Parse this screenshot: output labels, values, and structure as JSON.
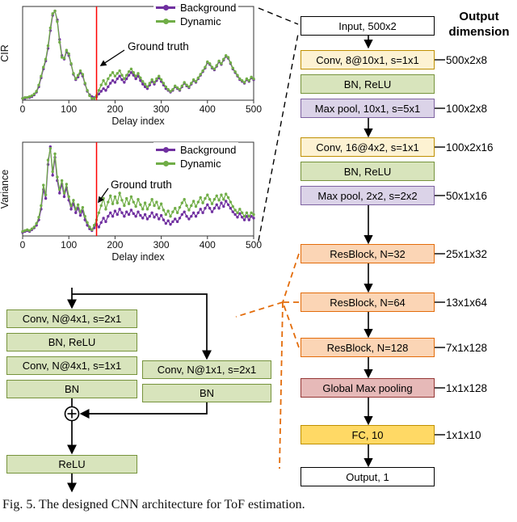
{
  "caption": "Fig. 5.  The designed CNN architecture for ToF estimation.",
  "flowchart": {
    "header": "Output dimension",
    "nodes": [
      {
        "label": "Input, 500x2",
        "type": "io",
        "dim": ""
      },
      {
        "label": "Conv, 8@10x1, s=1x1",
        "type": "conv",
        "dim": "500x2x8"
      },
      {
        "label": "BN, ReLU",
        "type": "bn",
        "dim": ""
      },
      {
        "label": "Max pool, 10x1, s=5x1",
        "type": "pool",
        "dim": "100x2x8"
      },
      {
        "label": "Conv, 16@4x2, s=1x1",
        "type": "conv",
        "dim": "100x2x16"
      },
      {
        "label": "BN, ReLU",
        "type": "bn",
        "dim": ""
      },
      {
        "label": "Max pool, 2x2, s=2x2",
        "type": "pool",
        "dim": "50x1x16"
      },
      {
        "label": "ResBlock, N=32",
        "type": "res",
        "dim": "25x1x32"
      },
      {
        "label": "ResBlock, N=64",
        "type": "res",
        "dim": "13x1x64"
      },
      {
        "label": "ResBlock, N=128",
        "type": "res",
        "dim": "7x1x128"
      },
      {
        "label": "Global Max pooling",
        "type": "gmp",
        "dim": "1x1x128"
      },
      {
        "label": "FC, 10",
        "type": "fc",
        "dim": "1x1x10"
      },
      {
        "label": "Output, 1",
        "type": "io",
        "dim": ""
      }
    ]
  },
  "resblock_detail": {
    "boxes": {
      "conv1": "Conv, N@4x1, s=2x1",
      "bn_relu": "BN, ReLU",
      "conv2": "Conv, N@4x1, s=1x1",
      "bn": "BN",
      "shortcut_conv": "Conv, N@1x1, s=2x1",
      "shortcut_bn": "BN",
      "relu": "ReLU"
    },
    "merge_symbol": "⊕"
  },
  "colors": {
    "conv_fill": "#fdf2d2",
    "conv_border": "#bf9000",
    "bn_fill": "#d8e4bc",
    "bn_border": "#76933c",
    "pool_fill": "#dbd3e8",
    "pool_border": "#7e62a1",
    "res_fill": "#fbd5b5",
    "res_border": "#e36c0a",
    "gmp_fill": "#e6b9b8",
    "gmp_border": "#953735",
    "fc_fill": "#ffd965",
    "fc_border": "#bf9000",
    "io_fill": "#ffffff",
    "io_border": "#000000",
    "background_series": "#7030a0",
    "dynamic_series": "#70ad47",
    "ground_truth_line": "#ff0000",
    "dashed_connector": "#e36c0a"
  },
  "chart_data": [
    {
      "type": "line",
      "ylabel": "CIR",
      "xlabel": "Delay index",
      "xlim": [
        0,
        500
      ],
      "ymax": 1.05,
      "xticks": [
        0,
        100,
        200,
        300,
        400,
        500
      ],
      "x_start": 0,
      "x_step": 5,
      "ground_truth_x": 160,
      "annotation": "Ground truth",
      "legend_position": "top-right",
      "series": [
        {
          "name": "Background",
          "color": "#7030a0",
          "values": [
            0.02,
            0.02,
            0.03,
            0.03,
            0.04,
            0.06,
            0.09,
            0.15,
            0.25,
            0.35,
            0.44,
            0.58,
            0.78,
            0.95,
            1.0,
            0.9,
            0.68,
            0.5,
            0.46,
            0.54,
            0.5,
            0.4,
            0.29,
            0.23,
            0.26,
            0.31,
            0.27,
            0.18,
            0.1,
            0.06,
            0.04,
            0.03,
            0.04,
            0.07,
            0.1,
            0.13,
            0.11,
            0.15,
            0.19,
            0.22,
            0.2,
            0.24,
            0.27,
            0.23,
            0.2,
            0.24,
            0.28,
            0.31,
            0.28,
            0.24,
            0.27,
            0.22,
            0.18,
            0.15,
            0.13,
            0.17,
            0.21,
            0.18,
            0.22,
            0.25,
            0.21,
            0.17,
            0.13,
            0.11,
            0.09,
            0.11,
            0.15,
            0.13,
            0.11,
            0.15,
            0.19,
            0.16,
            0.14,
            0.18,
            0.22,
            0.2,
            0.24,
            0.28,
            0.32,
            0.36,
            0.42,
            0.4,
            0.36,
            0.34,
            0.38,
            0.43,
            0.4,
            0.45,
            0.49,
            0.47,
            0.41,
            0.35,
            0.31,
            0.27,
            0.23,
            0.21,
            0.19,
            0.23,
            0.21,
            0.25,
            0.23
          ]
        },
        {
          "name": "Dynamic",
          "color": "#70ad47",
          "values": [
            0.02,
            0.03,
            0.03,
            0.04,
            0.05,
            0.07,
            0.1,
            0.17,
            0.27,
            0.37,
            0.46,
            0.61,
            0.81,
            0.97,
            1.0,
            0.88,
            0.65,
            0.48,
            0.47,
            0.56,
            0.52,
            0.41,
            0.3,
            0.24,
            0.28,
            0.33,
            0.29,
            0.19,
            0.11,
            0.05,
            0.02,
            0.02,
            0.05,
            0.11,
            0.17,
            0.22,
            0.18,
            0.24,
            0.28,
            0.31,
            0.27,
            0.3,
            0.33,
            0.28,
            0.24,
            0.28,
            0.32,
            0.35,
            0.31,
            0.27,
            0.3,
            0.25,
            0.21,
            0.18,
            0.15,
            0.19,
            0.23,
            0.2,
            0.24,
            0.27,
            0.23,
            0.19,
            0.15,
            0.12,
            0.1,
            0.12,
            0.16,
            0.14,
            0.12,
            0.16,
            0.2,
            0.17,
            0.15,
            0.19,
            0.23,
            0.21,
            0.25,
            0.29,
            0.33,
            0.37,
            0.43,
            0.41,
            0.37,
            0.35,
            0.39,
            0.44,
            0.41,
            0.46,
            0.5,
            0.48,
            0.42,
            0.36,
            0.32,
            0.28,
            0.24,
            0.22,
            0.2,
            0.24,
            0.22,
            0.26,
            0.24
          ]
        }
      ]
    },
    {
      "type": "line",
      "ylabel": "Variance",
      "xlabel": "Delay index",
      "xlim": [
        0,
        500
      ],
      "ymax": 1.05,
      "xticks": [
        0,
        100,
        200,
        300,
        400,
        500
      ],
      "x_start": 0,
      "x_step": 5,
      "ground_truth_x": 160,
      "annotation": "Ground truth",
      "legend_position": "top-right",
      "series": [
        {
          "name": "Background",
          "color": "#7030a0",
          "values": [
            0.04,
            0.05,
            0.06,
            0.05,
            0.07,
            0.09,
            0.12,
            0.18,
            0.3,
            0.52,
            0.42,
            0.8,
            1.0,
            0.68,
            0.88,
            0.62,
            0.48,
            0.58,
            0.44,
            0.54,
            0.4,
            0.3,
            0.36,
            0.26,
            0.31,
            0.23,
            0.28,
            0.18,
            0.12,
            0.08,
            0.06,
            0.09,
            0.13,
            0.1,
            0.15,
            0.2,
            0.16,
            0.22,
            0.26,
            0.22,
            0.28,
            0.24,
            0.3,
            0.26,
            0.22,
            0.27,
            0.24,
            0.29,
            0.25,
            0.22,
            0.27,
            0.23,
            0.2,
            0.24,
            0.19,
            0.22,
            0.26,
            0.21,
            0.24,
            0.19,
            0.23,
            0.18,
            0.14,
            0.17,
            0.13,
            0.16,
            0.19,
            0.16,
            0.2,
            0.24,
            0.27,
            0.22,
            0.19,
            0.22,
            0.26,
            0.22,
            0.26,
            0.3,
            0.26,
            0.31,
            0.35,
            0.31,
            0.27,
            0.31,
            0.35,
            0.31,
            0.37,
            0.33,
            0.39,
            0.35,
            0.31,
            0.27,
            0.24,
            0.21,
            0.25,
            0.21,
            0.18,
            0.22,
            0.18,
            0.22,
            0.2
          ]
        },
        {
          "name": "Dynamic",
          "color": "#70ad47",
          "values": [
            0.05,
            0.06,
            0.07,
            0.06,
            0.08,
            0.1,
            0.14,
            0.21,
            0.34,
            0.57,
            0.46,
            0.85,
            0.98,
            0.72,
            0.92,
            0.66,
            0.52,
            0.62,
            0.48,
            0.58,
            0.44,
            0.34,
            0.4,
            0.3,
            0.35,
            0.27,
            0.32,
            0.22,
            0.15,
            0.1,
            0.07,
            0.12,
            0.18,
            0.26,
            0.34,
            0.42,
            0.3,
            0.38,
            0.45,
            0.36,
            0.44,
            0.37,
            0.48,
            0.4,
            0.34,
            0.42,
            0.36,
            0.44,
            0.38,
            0.33,
            0.41,
            0.35,
            0.3,
            0.37,
            0.3,
            0.35,
            0.41,
            0.34,
            0.38,
            0.31,
            0.36,
            0.29,
            0.24,
            0.28,
            0.22,
            0.27,
            0.31,
            0.26,
            0.32,
            0.37,
            0.41,
            0.34,
            0.29,
            0.34,
            0.39,
            0.33,
            0.38,
            0.43,
            0.37,
            0.42,
            0.46,
            0.41,
            0.36,
            0.41,
            0.45,
            0.4,
            0.46,
            0.41,
            0.47,
            0.43,
            0.38,
            0.33,
            0.29,
            0.26,
            0.3,
            0.26,
            0.22,
            0.26,
            0.22,
            0.26,
            0.24
          ]
        }
      ]
    }
  ]
}
